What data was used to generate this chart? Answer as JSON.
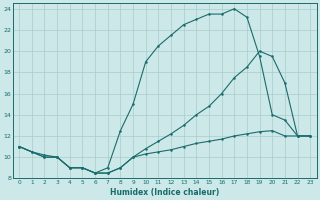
{
  "xlabel": "Humidex (Indice chaleur)",
  "bg_color": "#cce8e8",
  "grid_color": "#aacccc",
  "line_color": "#1a6b6b",
  "xlim": [
    -0.5,
    23.5
  ],
  "ylim": [
    8,
    24.5
  ],
  "xticks": [
    0,
    1,
    2,
    3,
    4,
    5,
    6,
    7,
    8,
    9,
    10,
    11,
    12,
    13,
    14,
    15,
    16,
    17,
    18,
    19,
    20,
    21,
    22,
    23
  ],
  "yticks": [
    8,
    10,
    12,
    14,
    16,
    18,
    20,
    22,
    24
  ],
  "line1_x": [
    0,
    1,
    2,
    3,
    4,
    5,
    6,
    7,
    8,
    9,
    10,
    11,
    12,
    13,
    14,
    15,
    16,
    17,
    18,
    19,
    20,
    21,
    22,
    23
  ],
  "line1_y": [
    11,
    10.5,
    10,
    10,
    9,
    9,
    8.5,
    9,
    12.5,
    15,
    19,
    20.5,
    21.5,
    22.5,
    23,
    23.5,
    23.5,
    24,
    23.2,
    19.5,
    14,
    13.5,
    12,
    12
  ],
  "line2_x": [
    0,
    1,
    2,
    3,
    4,
    5,
    6,
    7,
    8,
    9,
    10,
    11,
    12,
    13,
    14,
    15,
    16,
    17,
    18,
    19,
    20,
    21,
    22,
    23
  ],
  "line2_y": [
    11,
    10.5,
    10.2,
    10,
    9,
    9,
    8.5,
    8.5,
    9,
    10,
    10.8,
    11.5,
    12.2,
    13,
    14,
    14.8,
    16,
    17.5,
    18.5,
    20,
    19.5,
    17,
    12,
    12
  ],
  "line3_x": [
    0,
    2,
    3,
    4,
    5,
    6,
    7,
    8,
    9,
    10,
    11,
    12,
    13,
    14,
    15,
    16,
    17,
    18,
    19,
    20,
    21,
    22,
    23
  ],
  "line3_y": [
    11,
    10,
    10,
    9,
    9,
    8.5,
    8.5,
    9,
    10,
    10.3,
    10.5,
    10.7,
    11,
    11.3,
    11.5,
    11.7,
    12,
    12.2,
    12.4,
    12.5,
    12,
    12,
    12
  ]
}
